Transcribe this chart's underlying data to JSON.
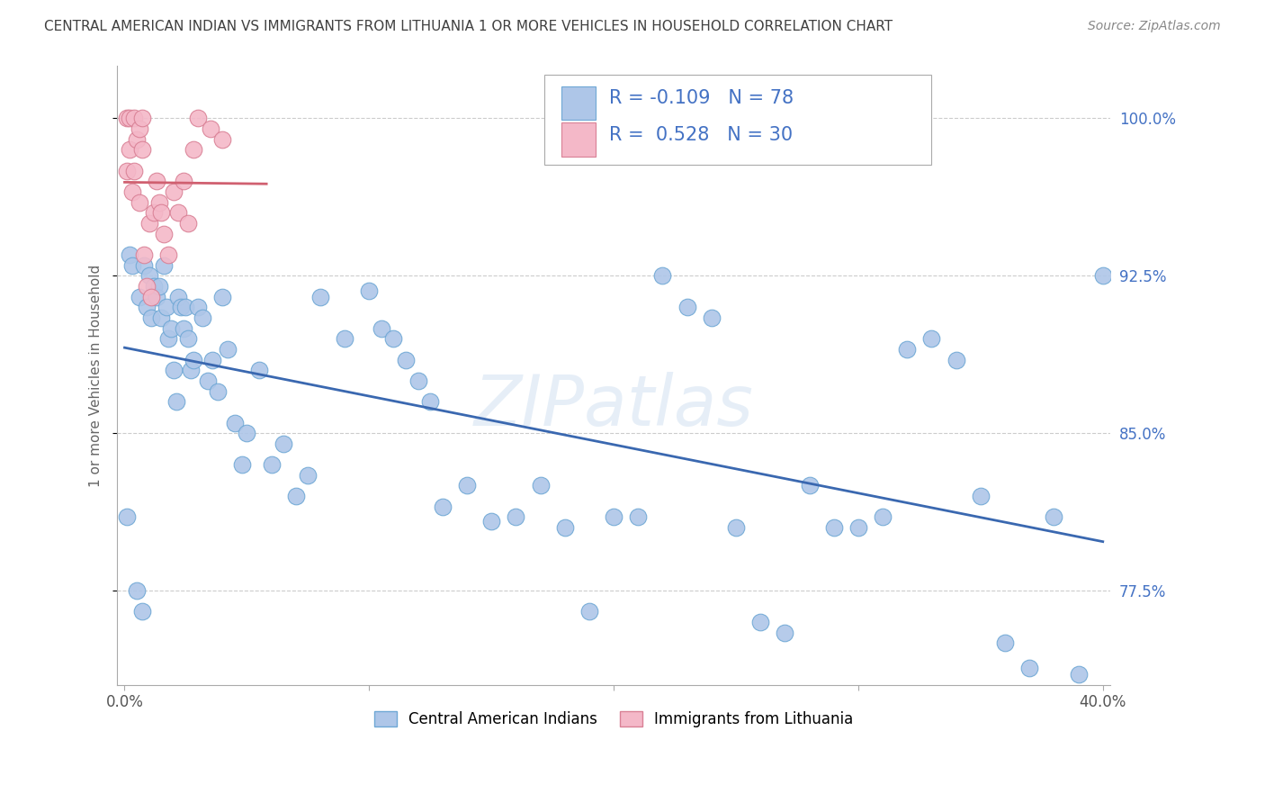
{
  "title": "CENTRAL AMERICAN INDIAN VS IMMIGRANTS FROM LITHUANIA 1 OR MORE VEHICLES IN HOUSEHOLD CORRELATION CHART",
  "source": "Source: ZipAtlas.com",
  "ylabel": "1 or more Vehicles in Household",
  "xlim": [
    -0.003,
    0.403
  ],
  "ylim": [
    73.0,
    102.5
  ],
  "ytick_vals": [
    77.5,
    85.0,
    92.5,
    100.0
  ],
  "ytick_labels": [
    "77.5%",
    "85.0%",
    "92.5%",
    "100.0%"
  ],
  "xtick_vals": [
    0.0,
    0.1,
    0.2,
    0.3,
    0.4
  ],
  "xtick_labels": [
    "0.0%",
    "",
    "",
    "",
    "40.0%"
  ],
  "blue_R": -0.109,
  "blue_N": 78,
  "pink_R": 0.528,
  "pink_N": 30,
  "legend_label_blue": "Central American Indians",
  "legend_label_pink": "Immigrants from Lithuania",
  "blue_color": "#aec6e8",
  "blue_edge": "#6fa8d5",
  "blue_line_color": "#3a68b0",
  "pink_color": "#f4b8c8",
  "pink_edge": "#d98095",
  "pink_line_color": "#d06070",
  "background_color": "#ffffff",
  "grid_color": "#cccccc",
  "title_color": "#404040",
  "axis_color": "#aaaaaa",
  "watermark": "ZIPatlas",
  "blue_x": [
    0.001,
    0.002,
    0.003,
    0.005,
    0.006,
    0.007,
    0.008,
    0.009,
    0.01,
    0.011,
    0.012,
    0.013,
    0.014,
    0.015,
    0.016,
    0.017,
    0.018,
    0.019,
    0.02,
    0.021,
    0.022,
    0.023,
    0.024,
    0.025,
    0.026,
    0.027,
    0.028,
    0.03,
    0.032,
    0.034,
    0.036,
    0.038,
    0.04,
    0.042,
    0.045,
    0.048,
    0.05,
    0.055,
    0.06,
    0.065,
    0.07,
    0.075,
    0.08,
    0.09,
    0.1,
    0.105,
    0.11,
    0.115,
    0.12,
    0.125,
    0.13,
    0.14,
    0.15,
    0.16,
    0.17,
    0.18,
    0.19,
    0.2,
    0.21,
    0.22,
    0.23,
    0.24,
    0.25,
    0.26,
    0.27,
    0.28,
    0.29,
    0.3,
    0.31,
    0.32,
    0.33,
    0.34,
    0.35,
    0.36,
    0.37,
    0.38,
    0.39,
    0.4
  ],
  "blue_y": [
    81.0,
    93.5,
    93.0,
    77.5,
    91.5,
    76.5,
    93.0,
    91.0,
    92.5,
    90.5,
    92.0,
    91.5,
    92.0,
    90.5,
    93.0,
    91.0,
    89.5,
    90.0,
    88.0,
    86.5,
    91.5,
    91.0,
    90.0,
    91.0,
    89.5,
    88.0,
    88.5,
    91.0,
    90.5,
    87.5,
    88.5,
    87.0,
    91.5,
    89.0,
    85.5,
    83.5,
    85.0,
    88.0,
    83.5,
    84.5,
    82.0,
    83.0,
    91.5,
    89.5,
    91.8,
    90.0,
    89.5,
    88.5,
    87.5,
    86.5,
    81.5,
    82.5,
    80.8,
    81.0,
    82.5,
    80.5,
    76.5,
    81.0,
    81.0,
    92.5,
    91.0,
    90.5,
    80.5,
    76.0,
    75.5,
    82.5,
    80.5,
    80.5,
    81.0,
    89.0,
    89.5,
    88.5,
    82.0,
    75.0,
    73.8,
    81.0,
    73.5,
    92.5
  ],
  "pink_x": [
    0.001,
    0.001,
    0.002,
    0.002,
    0.003,
    0.004,
    0.004,
    0.005,
    0.006,
    0.006,
    0.007,
    0.007,
    0.008,
    0.009,
    0.01,
    0.011,
    0.012,
    0.013,
    0.014,
    0.015,
    0.016,
    0.018,
    0.02,
    0.022,
    0.024,
    0.026,
    0.028,
    0.03,
    0.035,
    0.04
  ],
  "pink_y": [
    100.0,
    97.5,
    98.5,
    100.0,
    96.5,
    97.5,
    100.0,
    99.0,
    99.5,
    96.0,
    100.0,
    98.5,
    93.5,
    92.0,
    95.0,
    91.5,
    95.5,
    97.0,
    96.0,
    95.5,
    94.5,
    93.5,
    96.5,
    95.5,
    97.0,
    95.0,
    98.5,
    100.0,
    99.5,
    99.0
  ]
}
